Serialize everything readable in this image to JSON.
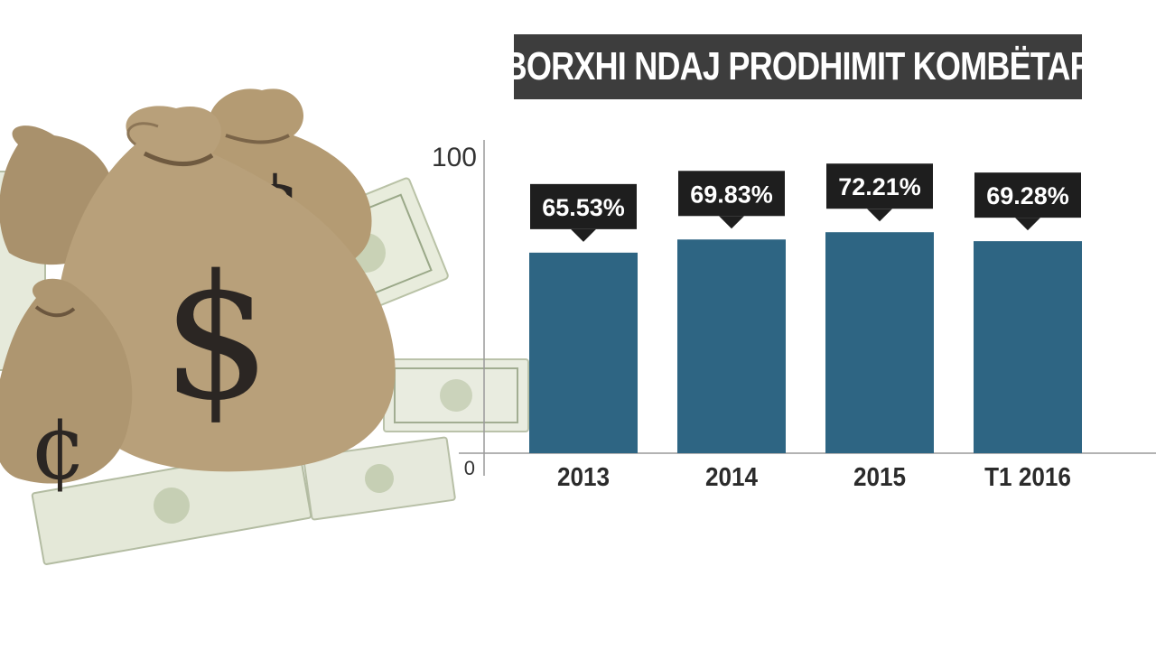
{
  "colors": {
    "bar": "#2e6583",
    "callout": "#1e1e1e",
    "title_bg": "#3d3d3d",
    "axis": "#9a9a9a"
  },
  "decoration": {
    "illustration": "money bags with dollar and cent signs and 100 dollar bills"
  },
  "chart_data": {
    "type": "bar",
    "title": "BORXHI NDAJ PRODHIMIT KOMBËTAR",
    "categories": [
      "2013",
      "2014",
      "2015",
      "T1 2016"
    ],
    "values": [
      65.53,
      69.83,
      72.21,
      69.28
    ],
    "value_labels": [
      "65.53%",
      "69.83%",
      "72.21%",
      "69.28%"
    ],
    "yticks": [
      "100",
      "0"
    ],
    "ylim": [
      0,
      100
    ],
    "xlabel": "",
    "ylabel": "",
    "grid": false
  }
}
